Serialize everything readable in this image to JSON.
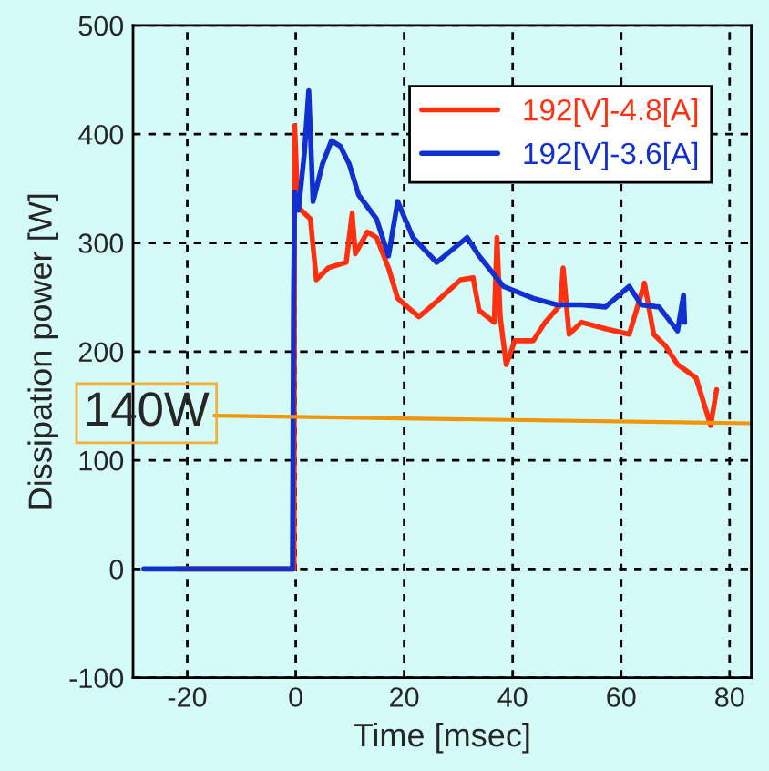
{
  "chart_data": {
    "type": "line",
    "xlabel": "Time [msec]",
    "ylabel": "Dissipation power [W]",
    "xlim": [
      -30,
      84
    ],
    "xticks": [
      -20,
      0,
      20,
      40,
      60,
      80
    ],
    "ylim": [
      -100,
      500
    ],
    "yticks": [
      -100,
      0,
      100,
      200,
      300,
      400,
      500
    ],
    "grid": true,
    "legend": "top right",
    "line_style": "solid",
    "series": [
      {
        "name": "192[V]-4.8[A]",
        "color": "#ff3010",
        "x": [
          -22,
          -0.3,
          -0.2,
          0.4,
          2.7,
          3.8,
          6,
          9.3,
          10.4,
          11,
          13.2,
          14.9,
          17.1,
          18.8,
          22.7,
          26,
          30.4,
          32.7,
          33.8,
          36.6,
          37.1,
          37.7,
          38.8,
          40.4,
          43.8,
          46,
          48.8,
          49.3,
          50.4,
          52.7,
          57.1,
          61.5,
          64.3,
          66,
          68.2,
          70.4,
          73.8,
          76.5,
          77.6
        ],
        "values": [
          0,
          0,
          408,
          333,
          322,
          266,
          277,
          282,
          327,
          290,
          310,
          305,
          277,
          249,
          232,
          246,
          266,
          268,
          238,
          227,
          305,
          232,
          188,
          210,
          210,
          227,
          243,
          277,
          216,
          227,
          221,
          216,
          263,
          216,
          205,
          188,
          176,
          132,
          165
        ]
      },
      {
        "name": "192[V]-3.6[A]",
        "color": "#1030d0",
        "x": [
          -28,
          -0.6,
          -0.4,
          -0.2,
          0.5,
          1.6,
          2.4,
          3.2,
          4.9,
          6.6,
          8.2,
          9.9,
          11.6,
          14.9,
          17.1,
          18.8,
          21.6,
          26,
          31.6,
          33.8,
          38.3,
          43.8,
          48.2,
          52.7,
          57.1,
          61.5,
          63.7,
          67,
          70.4,
          71.5,
          71.7
        ],
        "values": [
          0,
          0,
          250,
          347,
          330,
          383,
          440,
          338,
          372,
          394,
          389,
          372,
          344,
          322,
          288,
          338,
          305,
          282,
          305,
          288,
          260,
          249,
          243,
          243,
          241,
          260,
          243,
          241,
          219,
          252,
          227
        ]
      },
      {
        "color": "#f0960a",
        "x": [
          -15,
          84
        ],
        "values": [
          141,
          134
        ]
      }
    ],
    "annotations": [
      {
        "text": "140W",
        "x": -15,
        "y": 141
      }
    ]
  }
}
